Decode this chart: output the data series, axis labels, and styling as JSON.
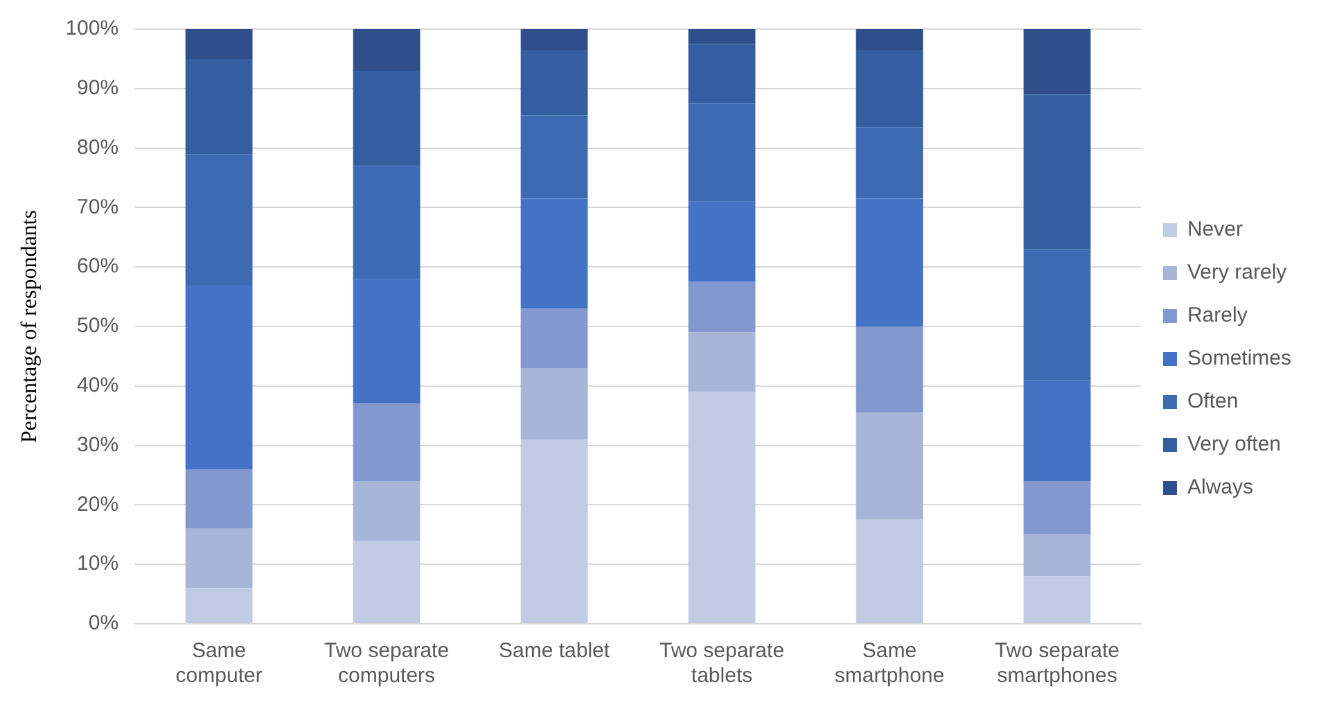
{
  "chart_data": {
    "type": "bar",
    "stacked": true,
    "ylabel": "Percentage of respondants",
    "categories": [
      "Same computer",
      "Two separate computers",
      "Same tablet",
      "Two separate tablets",
      "Same smartphone",
      "Two separate smartphones"
    ],
    "series": [
      {
        "name": "Never",
        "color": "#c1cbe4",
        "values": [
          6,
          14,
          31,
          39,
          17.5,
          8
        ]
      },
      {
        "name": "Very rarely",
        "color": "#a7b5d9",
        "values": [
          10,
          10,
          12,
          10,
          18,
          7
        ]
      },
      {
        "name": "Rarely",
        "color": "#8298cf",
        "values": [
          10,
          13,
          10,
          8.5,
          14.5,
          9
        ]
      },
      {
        "name": "Sometimes",
        "color": "#4472c4",
        "values": [
          31,
          21,
          18.5,
          13.5,
          21.5,
          17
        ]
      },
      {
        "name": "Often",
        "color": "#3d6ab3",
        "values": [
          22,
          19,
          14,
          16.5,
          12,
          22
        ]
      },
      {
        "name": "Very often",
        "color": "#345e9f",
        "values": [
          16,
          16,
          11,
          10,
          13,
          26
        ]
      },
      {
        "name": "Always",
        "color": "#2e4f8a",
        "values": [
          5,
          7,
          3.5,
          2.5,
          3.5,
          11
        ]
      }
    ],
    "ylim": [
      0,
      100
    ],
    "yticks": [
      {
        "value": 0,
        "label": "0%"
      },
      {
        "value": 10,
        "label": "10%"
      },
      {
        "value": 20,
        "label": "20%"
      },
      {
        "value": 30,
        "label": "30%"
      },
      {
        "value": 40,
        "label": "40%"
      },
      {
        "value": 50,
        "label": "50%"
      },
      {
        "value": 60,
        "label": "60%"
      },
      {
        "value": 70,
        "label": "70%"
      },
      {
        "value": 80,
        "label": "80%"
      },
      {
        "value": 90,
        "label": "90%"
      },
      {
        "value": 100,
        "label": "100%"
      }
    ],
    "grid": "y",
    "legend": "right"
  }
}
